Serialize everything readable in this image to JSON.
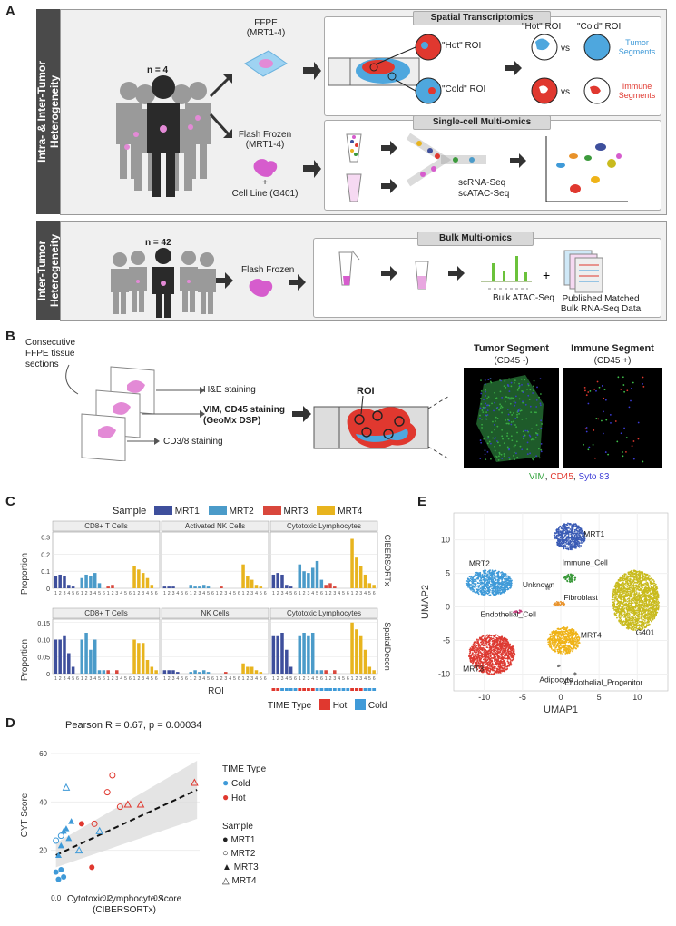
{
  "panelA": {
    "label": "A",
    "row1_sidebar": "Intra- & Inter-Tumor",
    "row1_sidebar2": "Heterogeneity",
    "row2_sidebar": "Inter-Tumor",
    "row2_sidebar2": "Heterogeneity",
    "n1": "n = 4",
    "n2": "n = 42",
    "ffpe": "FFPE",
    "ffpe_sub": "(MRT1-4)",
    "flash": "Flash Frozen",
    "flash_sub": "(MRT1-4)",
    "plus": "+",
    "cellline": "Cell Line (G401)",
    "spatial_title": "Spatial Transcriptomics",
    "hot_roi": "\"Hot\" ROI",
    "cold_roi": "\"Cold\" ROI",
    "hot_roi_head": "\"Hot\" ROI",
    "cold_roi_head": "\"Cold\" ROI",
    "vs1": "vs",
    "vs2": "vs",
    "tumor_seg": "Tumor",
    "tumor_seg2": "Segments",
    "immune_seg": "Immune",
    "immune_seg2": "Segments",
    "sc_title": "Single-cell Multi-omics",
    "scrna": "scRNA-Seq",
    "scatac": "scATAC-Seq",
    "bulk_title": "Bulk Multi-omics",
    "flash2": "Flash Frozen",
    "bulk_atac": "Bulk ATAC-Seq",
    "plus2": "+",
    "published": "Published Matched",
    "published2": "Bulk RNA-Seq Data"
  },
  "panelB": {
    "label": "B",
    "consec": "Consecutive",
    "consec2": "FFPE tissue",
    "consec3": "sections",
    "he": "H&E staining",
    "vim": "VIM, CD45 staining",
    "geomx": "(GeoMx DSP)",
    "cd38": "CD3/8 staining",
    "roi": "ROI",
    "tumor_title": "Tumor Segment",
    "tumor_sub": "(CD45 -)",
    "immune_title": "Immune Segment",
    "immune_sub": "(CD45 +)",
    "legend_vim": "VIM",
    "legend_comma1": ", ",
    "legend_cd45": "CD45",
    "legend_comma2": ", ",
    "legend_syto": "Syto 83"
  },
  "panelC": {
    "label": "C",
    "sample_label": "Sample",
    "samples": [
      "MRT1",
      "MRT2",
      "MRT3",
      "MRT4"
    ],
    "colors": {
      "MRT1": "#3e4f9c",
      "MRT2": "#4b9bc9",
      "MRT3": "#d9473c",
      "MRT4": "#e8b41e",
      "hot": "#e0382f",
      "cold": "#3f9ad8"
    },
    "top_titles": [
      "CD8+ T Cells",
      "Activated NK Cells",
      "Cytotoxic Lymphocytes"
    ],
    "bottom_titles": [
      "CD8+ T Cells",
      "NK Cells",
      "Cytotoxic Lymphocytes"
    ],
    "top_side": "CIBERSORTx",
    "bottom_side": "SpatialDecon",
    "ylabel": "Proportion",
    "xlabel": "ROI",
    "top_ticks": [
      "0.3",
      "0.2",
      "0.1",
      "0"
    ],
    "bottom_ticks": [
      "0.15",
      "0.10",
      "0.05",
      "0"
    ],
    "roi_ticks": "123456123456123456123456",
    "time_label": "TIME Type",
    "hot": "Hot",
    "cold": "Cold"
  },
  "chart_data": [
    {
      "type": "bar",
      "title": "CIBERSORTx",
      "ylabel": "Proportion",
      "ylim": [
        0,
        0.33
      ],
      "series": [
        {
          "name": "CD8+ T Cells",
          "values": [
            0.07,
            0.08,
            0.07,
            0.02,
            0.01,
            0.0,
            0.06,
            0.08,
            0.07,
            0.09,
            0.03,
            0.0,
            0.01,
            0.02,
            0.0,
            0.0,
            0.0,
            0.0,
            0.13,
            0.11,
            0.09,
            0.06,
            0.02,
            0.0
          ]
        },
        {
          "name": "Activated NK Cells",
          "values": [
            0.01,
            0.01,
            0.01,
            0.0,
            0.0,
            0.0,
            0.02,
            0.01,
            0.01,
            0.02,
            0.01,
            0.0,
            0.0,
            0.01,
            0.0,
            0.0,
            0.0,
            0.0,
            0.14,
            0.07,
            0.05,
            0.02,
            0.01,
            0.0
          ]
        },
        {
          "name": "Cytotoxic Lymphocytes",
          "values": [
            0.08,
            0.09,
            0.08,
            0.02,
            0.01,
            0.0,
            0.14,
            0.1,
            0.09,
            0.12,
            0.16,
            0.05,
            0.02,
            0.03,
            0.01,
            0.0,
            0.0,
            0.0,
            0.29,
            0.18,
            0.13,
            0.08,
            0.03,
            0.02
          ]
        }
      ]
    },
    {
      "type": "bar",
      "title": "SpatialDecon",
      "ylabel": "Proportion",
      "ylim": [
        0,
        0.16
      ],
      "series": [
        {
          "name": "CD8+ T Cells",
          "values": [
            0.1,
            0.1,
            0.11,
            0.06,
            0.02,
            0.0,
            0.1,
            0.12,
            0.07,
            0.1,
            0.01,
            0.01,
            0.01,
            0.0,
            0.01,
            0.0,
            0.0,
            0.0,
            0.1,
            0.09,
            0.09,
            0.04,
            0.02,
            0.01
          ]
        },
        {
          "name": "NK Cells",
          "values": [
            0.01,
            0.01,
            0.01,
            0.005,
            0.0,
            0.0,
            0.005,
            0.01,
            0.005,
            0.01,
            0.005,
            0.0,
            0.0,
            0.0,
            0.005,
            0.0,
            0.0,
            0.0,
            0.03,
            0.02,
            0.02,
            0.01,
            0.005,
            0.0
          ]
        },
        {
          "name": "Cytotoxic Lymphocytes",
          "values": [
            0.11,
            0.11,
            0.12,
            0.07,
            0.02,
            0.0,
            0.11,
            0.12,
            0.11,
            0.12,
            0.01,
            0.01,
            0.01,
            0.0,
            0.01,
            0.0,
            0.0,
            0.0,
            0.15,
            0.13,
            0.11,
            0.07,
            0.02,
            0.01
          ]
        }
      ]
    },
    {
      "type": "scatter",
      "title": "Pearson R = 0.67, p = 0.00034",
      "xlabel": "Cytotoxic Lymphocyte Score (CIBERSORTx)",
      "ylabel": "CYT Score",
      "xlim": [
        -0.02,
        0.56
      ],
      "ylim": [
        3,
        66
      ],
      "xticks": [
        0.0,
        0.2,
        0.4
      ],
      "yticks": [
        20,
        40,
        60
      ],
      "trend": {
        "x0": 0.0,
        "y0": 18,
        "x1": 0.55,
        "y1": 45
      },
      "points": [
        {
          "x": 0.0,
          "y": 11,
          "sample": "MRT1",
          "time": "Cold"
        },
        {
          "x": 0.01,
          "y": 8,
          "sample": "MRT1",
          "time": "Cold"
        },
        {
          "x": 0.03,
          "y": 9,
          "sample": "MRT1",
          "time": "Cold"
        },
        {
          "x": 0.02,
          "y": 12,
          "sample": "MRT1",
          "time": "Cold"
        },
        {
          "x": 0.14,
          "y": 13,
          "sample": "MRT1",
          "time": "Hot"
        },
        {
          "x": 0.1,
          "y": 31,
          "sample": "MRT1",
          "time": "Hot"
        },
        {
          "x": 0.0,
          "y": 24,
          "sample": "MRT2",
          "time": "Cold"
        },
        {
          "x": 0.02,
          "y": 26,
          "sample": "MRT2",
          "time": "Cold"
        },
        {
          "x": 0.15,
          "y": 31,
          "sample": "MRT2",
          "time": "Hot"
        },
        {
          "x": 0.2,
          "y": 44,
          "sample": "MRT2",
          "time": "Hot"
        },
        {
          "x": 0.22,
          "y": 51,
          "sample": "MRT2",
          "time": "Hot"
        },
        {
          "x": 0.25,
          "y": 38,
          "sample": "MRT2",
          "time": "Hot"
        },
        {
          "x": 0.03,
          "y": 28,
          "sample": "MRT3",
          "time": "Cold"
        },
        {
          "x": 0.01,
          "y": 18,
          "sample": "MRT3",
          "time": "Cold"
        },
        {
          "x": 0.04,
          "y": 29,
          "sample": "MRT3",
          "time": "Cold"
        },
        {
          "x": 0.06,
          "y": 32,
          "sample": "MRT3",
          "time": "Cold"
        },
        {
          "x": 0.02,
          "y": 22,
          "sample": "MRT3",
          "time": "Cold"
        },
        {
          "x": 0.05,
          "y": 25,
          "sample": "MRT3",
          "time": "Cold"
        },
        {
          "x": 0.04,
          "y": 46,
          "sample": "MRT4",
          "time": "Cold"
        },
        {
          "x": 0.09,
          "y": 20,
          "sample": "MRT4",
          "time": "Cold"
        },
        {
          "x": 0.17,
          "y": 28,
          "sample": "MRT4",
          "time": "Cold"
        },
        {
          "x": 0.28,
          "y": 39,
          "sample": "MRT4",
          "time": "Hot"
        },
        {
          "x": 0.33,
          "y": 39,
          "sample": "MRT4",
          "time": "Hot"
        },
        {
          "x": 0.54,
          "y": 48,
          "sample": "MRT4",
          "time": "Hot"
        }
      ]
    },
    {
      "type": "scatter",
      "title": "UMAP",
      "xlabel": "UMAP1",
      "ylabel": "UMAP2",
      "xlim": [
        -14,
        14
      ],
      "ylim": [
        -12.5,
        14
      ],
      "xticks": [
        -10,
        -5,
        0,
        5,
        10
      ],
      "yticks": [
        -10,
        -5,
        0,
        5,
        10
      ],
      "clusters": [
        {
          "name": "MRT1",
          "cx": 1.2,
          "cy": 10.5,
          "rx": 2.1,
          "ry": 2.0,
          "color": "#3a5bb5"
        },
        {
          "name": "MRT2",
          "cx": -9.3,
          "cy": 3.6,
          "rx": 3.0,
          "ry": 1.9,
          "color": "#3f9ad8"
        },
        {
          "name": "G401",
          "cx": 9.8,
          "cy": 1.0,
          "rx": 3.1,
          "ry": 4.5,
          "color": "#c9bb1e"
        },
        {
          "name": "MRT4",
          "cx": 0.4,
          "cy": -5.0,
          "rx": 2.1,
          "ry": 2.0,
          "color": "#efb318"
        },
        {
          "name": "MRT3",
          "cx": -9.0,
          "cy": -7.1,
          "rx": 3.0,
          "ry": 3.0,
          "color": "#dd3a32"
        },
        {
          "name": "Immune_Cell",
          "cx": 1.2,
          "cy": 4.3,
          "rx": 0.8,
          "ry": 0.6,
          "color": "#3c9a3c"
        },
        {
          "name": "Fibroblast",
          "cx": -0.3,
          "cy": 0.5,
          "rx": 1.0,
          "ry": 0.3,
          "color": "#e8922a"
        },
        {
          "name": "Unknown",
          "cx": -1.7,
          "cy": 2.8,
          "rx": 0.3,
          "ry": 0.3,
          "color": "#9a9a9a"
        },
        {
          "name": "Endothelial_Cell",
          "cx": -5.6,
          "cy": -0.7,
          "rx": 0.7,
          "ry": 0.2,
          "color": "#c23b7a"
        },
        {
          "name": "Adipocyte",
          "cx": -0.2,
          "cy": -8.8,
          "rx": 0.2,
          "ry": 0.2,
          "color": "#777777"
        },
        {
          "name": "Endothelial_Progenitor",
          "cx": 1.8,
          "cy": -10.0,
          "rx": 0.2,
          "ry": 0.2,
          "color": "#777777"
        }
      ]
    }
  ],
  "panelD": {
    "label": "D",
    "title": "Pearson R = 0.67, p = 0.00034",
    "ylabel": "CYT Score",
    "xlabel": "Cytotoxic Lymphocyte Score",
    "xlabel2": "(CIBERSORTx)",
    "yticks": [
      "60",
      "40",
      "20"
    ],
    "xticks": [
      "0.0",
      "0.2",
      "0.4"
    ],
    "time_title": "TIME Type",
    "cold": "Cold",
    "hot": "Hot",
    "sample_title": "Sample",
    "samples": [
      "MRT1",
      "MRT2",
      "MRT3",
      "MRT4"
    ]
  },
  "panelE": {
    "label": "E",
    "xlabel": "UMAP1",
    "ylabel": "UMAP2",
    "xticks": [
      "-10",
      "-5",
      "0",
      "5",
      "10"
    ],
    "yticks": [
      "10",
      "5",
      "0",
      "-5",
      "-10"
    ],
    "labels": [
      "MRT1",
      "MRT2",
      "Immune_Cell",
      "Unknown",
      "Fibroblast",
      "Endothelial_Cell",
      "G401",
      "MRT4",
      "MRT3",
      "Adipocyte",
      "Endothelial_Progenitor"
    ]
  }
}
